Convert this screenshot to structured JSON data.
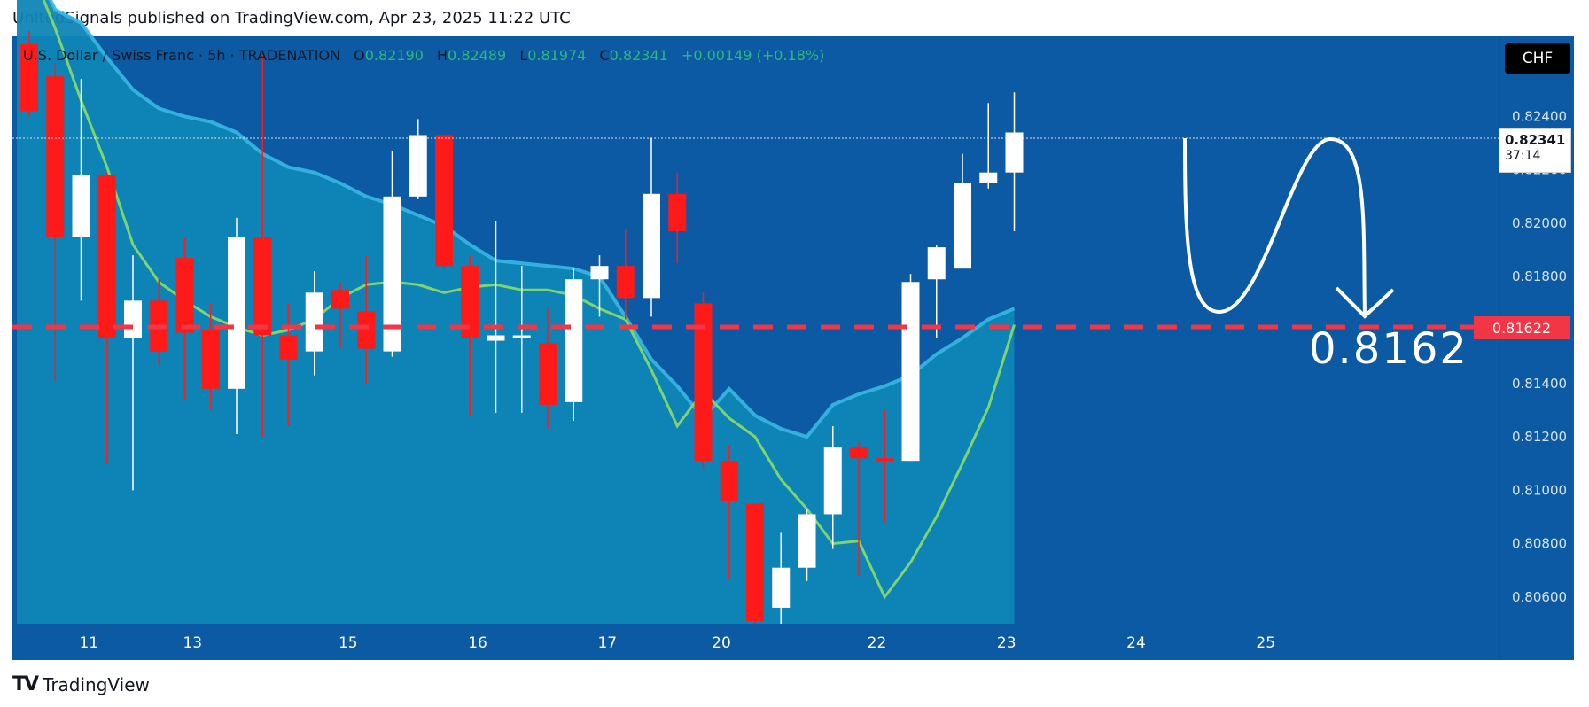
{
  "header": {
    "published": "UnitedSignals published on TradingView.com, Apr 23, 2025 11:22 UTC"
  },
  "legend": {
    "symbol": "U.S. Dollar / Swiss Franc · 5h · TRADENATION",
    "o_label": "O",
    "o": "0.82190",
    "h_label": "H",
    "h": "0.82489",
    "l_label": "L",
    "l": "0.81974",
    "c_label": "C",
    "c": "0.82341",
    "change": "+0.00149 (+0.18%)"
  },
  "currency_badge": "CHF",
  "last_price": {
    "price": "0.82341",
    "countdown": "37:14"
  },
  "level_tag": "0.81622",
  "annotation_text": "0.8162",
  "brand": {
    "mark": "TV",
    "name": "TradingView"
  },
  "colors": {
    "background": "#0b5aa3",
    "shaded_area": "#0f86b6",
    "ma_line": "#7fd46e",
    "band_line": "#39b7e3",
    "up_candle": "#ffffff",
    "down_candle": "#ff1a1a",
    "level_line": "#f23645"
  },
  "chart_data": {
    "type": "candlestick",
    "symbol": "U.S. Dollar / Swiss Franc",
    "interval": "5h",
    "x_ticks": [
      {
        "label": "11",
        "bar": 2.3
      },
      {
        "label": "13",
        "bar": 6.3
      },
      {
        "label": "15",
        "bar": 12.3
      },
      {
        "label": "16",
        "bar": 17.3
      },
      {
        "label": "17",
        "bar": 22.3
      },
      {
        "label": "20",
        "bar": 26.7
      },
      {
        "label": "22",
        "bar": 32.7
      },
      {
        "label": "23",
        "bar": 37.7
      },
      {
        "label": "24",
        "bar": 42.7
      },
      {
        "label": "25",
        "bar": 47.7
      }
    ],
    "y_ticks": [
      "0.80600",
      "0.80800",
      "0.81000",
      "0.81200",
      "0.81400",
      "0.81800",
      "0.82000",
      "0.82200",
      "0.82400"
    ],
    "ylim": [
      0.805,
      0.827
    ],
    "total_bars": 51,
    "candles": [
      {
        "o": 0.8267,
        "h": 0.8272,
        "l": 0.824,
        "c": 0.8242
      },
      {
        "o": 0.8255,
        "h": 0.826,
        "l": 0.8141,
        "c": 0.8195
      },
      {
        "o": 0.8195,
        "h": 0.8254,
        "l": 0.8171,
        "c": 0.8218
      },
      {
        "o": 0.8218,
        "h": 0.8219,
        "l": 0.811,
        "c": 0.8157
      },
      {
        "o": 0.8157,
        "h": 0.8188,
        "l": 0.81,
        "c": 0.8171
      },
      {
        "o": 0.8171,
        "h": 0.8179,
        "l": 0.8147,
        "c": 0.8152
      },
      {
        "o": 0.8187,
        "h": 0.8195,
        "l": 0.8134,
        "c": 0.8159
      },
      {
        "o": 0.816,
        "h": 0.817,
        "l": 0.813,
        "c": 0.8138
      },
      {
        "o": 0.8138,
        "h": 0.8202,
        "l": 0.8121,
        "c": 0.8195
      },
      {
        "o": 0.8195,
        "h": 0.8263,
        "l": 0.812,
        "c": 0.8158
      },
      {
        "o": 0.8158,
        "h": 0.817,
        "l": 0.8124,
        "c": 0.8149
      },
      {
        "o": 0.8152,
        "h": 0.8182,
        "l": 0.8143,
        "c": 0.8174
      },
      {
        "o": 0.8175,
        "h": 0.8178,
        "l": 0.8153,
        "c": 0.8168
      },
      {
        "o": 0.8167,
        "h": 0.8188,
        "l": 0.814,
        "c": 0.8153
      },
      {
        "o": 0.8152,
        "h": 0.8227,
        "l": 0.815,
        "c": 0.821
      },
      {
        "o": 0.821,
        "h": 0.8239,
        "l": 0.8209,
        "c": 0.8233
      },
      {
        "o": 0.8233,
        "h": 0.8233,
        "l": 0.8183,
        "c": 0.8184
      },
      {
        "o": 0.8184,
        "h": 0.8188,
        "l": 0.8128,
        "c": 0.8157
      },
      {
        "o": 0.8156,
        "h": 0.8201,
        "l": 0.8129,
        "c": 0.8158
      },
      {
        "o": 0.8157,
        "h": 0.8184,
        "l": 0.8129,
        "c": 0.8158
      },
      {
        "o": 0.8155,
        "h": 0.8168,
        "l": 0.8123,
        "c": 0.8132
      },
      {
        "o": 0.8133,
        "h": 0.8183,
        "l": 0.8126,
        "c": 0.8179
      },
      {
        "o": 0.8179,
        "h": 0.8188,
        "l": 0.8165,
        "c": 0.8184
      },
      {
        "o": 0.8184,
        "h": 0.8198,
        "l": 0.8164,
        "c": 0.8172
      },
      {
        "o": 0.8172,
        "h": 0.8232,
        "l": 0.8165,
        "c": 0.8211
      },
      {
        "o": 0.8211,
        "h": 0.8219,
        "l": 0.8185,
        "c": 0.8197
      },
      {
        "o": 0.817,
        "h": 0.8174,
        "l": 0.8108,
        "c": 0.8111
      },
      {
        "o": 0.8111,
        "h": 0.8117,
        "l": 0.8067,
        "c": 0.8096
      },
      {
        "o": 0.8095,
        "h": 0.8095,
        "l": 0.805,
        "c": 0.8051
      },
      {
        "o": 0.8056,
        "h": 0.8084,
        "l": 0.805,
        "c": 0.8071
      },
      {
        "o": 0.8071,
        "h": 0.8093,
        "l": 0.8066,
        "c": 0.8091
      },
      {
        "o": 0.8091,
        "h": 0.8124,
        "l": 0.8078,
        "c": 0.8116
      },
      {
        "o": 0.8116,
        "h": 0.8118,
        "l": 0.8068,
        "c": 0.8112
      },
      {
        "o": 0.8112,
        "h": 0.813,
        "l": 0.8088,
        "c": 0.8111
      },
      {
        "o": 0.8111,
        "h": 0.8181,
        "l": 0.8111,
        "c": 0.8178
      },
      {
        "o": 0.8179,
        "h": 0.8192,
        "l": 0.8157,
        "c": 0.8191
      },
      {
        "o": 0.8183,
        "h": 0.8226,
        "l": 0.8183,
        "c": 0.8215
      },
      {
        "o": 0.8215,
        "h": 0.8245,
        "l": 0.8213,
        "c": 0.8219
      },
      {
        "o": 0.8219,
        "h": 0.8249,
        "l": 0.8197,
        "c": 0.8234
      }
    ],
    "ma_series": [
      0.8297,
      0.8273,
      0.8246,
      0.8221,
      0.8192,
      0.8178,
      0.8171,
      0.8165,
      0.8161,
      0.8158,
      0.816,
      0.8164,
      0.8172,
      0.8177,
      0.8178,
      0.8177,
      0.8174,
      0.8176,
      0.8177,
      0.8175,
      0.8175,
      0.8173,
      0.8168,
      0.8164,
      0.8145,
      0.8124,
      0.8137,
      0.8127,
      0.812,
      0.8104,
      0.8093,
      0.808,
      0.8081,
      0.806,
      0.8073,
      0.809,
      0.811,
      0.8131,
      0.8162
    ],
    "band_series": [
      0.83,
      0.828,
      0.8275,
      0.8262,
      0.825,
      0.8243,
      0.824,
      0.8238,
      0.8234,
      0.8226,
      0.8221,
      0.8219,
      0.8215,
      0.821,
      0.8207,
      0.8203,
      0.8199,
      0.8192,
      0.8186,
      0.8185,
      0.8184,
      0.8183,
      0.818,
      0.8165,
      0.8149,
      0.8139,
      0.8127,
      0.8138,
      0.8128,
      0.8123,
      0.812,
      0.8132,
      0.8136,
      0.8139,
      0.8143,
      0.8151,
      0.8157,
      0.8164,
      0.8168
    ],
    "level": 0.8162,
    "last_price": 0.82341,
    "annotation": "0.8162"
  }
}
